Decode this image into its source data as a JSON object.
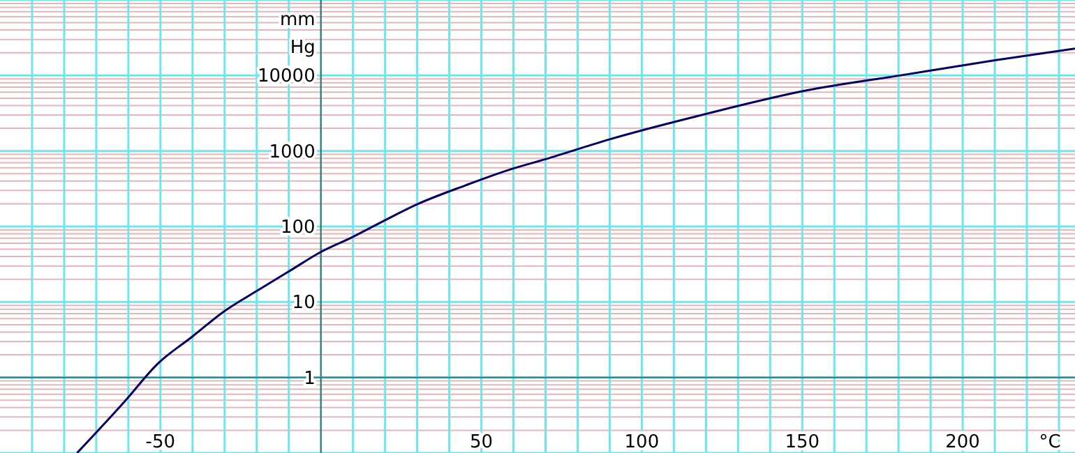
{
  "chart_data": {
    "type": "line",
    "xlabel": "°C",
    "ylabel": "mm Hg",
    "log": "y",
    "grid": true,
    "xlim": [
      -100,
      235
    ],
    "ylim": [
      0.1,
      100000
    ],
    "xticks": [
      {
        "value": -90,
        "label": null
      },
      {
        "value": -80,
        "label": null
      },
      {
        "value": -70,
        "label": null
      },
      {
        "value": -60,
        "label": null
      },
      -50,
      {
        "value": -40,
        "label": null
      },
      {
        "value": -30,
        "label": null
      },
      {
        "value": -20,
        "label": null
      },
      {
        "value": -10,
        "label": null
      },
      {
        "value": 10,
        "label": null
      },
      {
        "value": 20,
        "label": null
      },
      {
        "value": 30,
        "label": null
      },
      {
        "value": 40,
        "label": null
      },
      50,
      {
        "value": 60,
        "label": null
      },
      {
        "value": 70,
        "label": null
      },
      {
        "value": 80,
        "label": null
      },
      {
        "value": 90,
        "label": null
      },
      100,
      {
        "value": 110,
        "label": null
      },
      {
        "value": 120,
        "label": null
      },
      {
        "value": 130,
        "label": null
      },
      {
        "value": 140,
        "label": null
      },
      150,
      {
        "value": 160,
        "label": null
      },
      {
        "value": 170,
        "label": null
      },
      {
        "value": 180,
        "label": null
      },
      {
        "value": 190,
        "label": null
      },
      200,
      {
        "value": 210,
        "label": null
      },
      {
        "value": 220,
        "label": null
      },
      {
        "value": 230,
        "label": null
      }
    ],
    "yticks": [
      {
        "value": 0.2,
        "label": null
      },
      {
        "value": 0.3,
        "label": null
      },
      {
        "value": 0.4,
        "label": null
      },
      {
        "value": 0.5,
        "label": null
      },
      {
        "value": 0.6,
        "label": null
      },
      {
        "value": 0.7,
        "label": null
      },
      {
        "value": 0.8,
        "label": null
      },
      {
        "value": 0.9,
        "label": null
      },
      1,
      {
        "value": 2,
        "label": null
      },
      {
        "value": 3,
        "label": null
      },
      {
        "value": 4,
        "label": null
      },
      {
        "value": 5,
        "label": null
      },
      {
        "value": 6,
        "label": null
      },
      {
        "value": 7,
        "label": null
      },
      {
        "value": 8,
        "label": null
      },
      {
        "value": 9,
        "label": null
      },
      10,
      {
        "value": 20,
        "label": null
      },
      {
        "value": 30,
        "label": null
      },
      {
        "value": 40,
        "label": null
      },
      {
        "value": 50,
        "label": null
      },
      {
        "value": 60,
        "label": null
      },
      {
        "value": 70,
        "label": null
      },
      {
        "value": 80,
        "label": null
      },
      {
        "value": 90,
        "label": null
      },
      100,
      {
        "value": 200,
        "label": null
      },
      {
        "value": 300,
        "label": null
      },
      {
        "value": 400,
        "label": null
      },
      {
        "value": 500,
        "label": null
      },
      {
        "value": 600,
        "label": null
      },
      {
        "value": 700,
        "label": null
      },
      {
        "value": 800,
        "label": null
      },
      {
        "value": 900,
        "label": null
      },
      1000,
      {
        "value": 2000,
        "label": null
      },
      {
        "value": 3000,
        "label": null
      },
      {
        "value": 4000,
        "label": null
      },
      {
        "value": 5000,
        "label": null
      },
      {
        "value": 6000,
        "label": null
      },
      {
        "value": 7000,
        "label": null
      },
      {
        "value": 8000,
        "label": null
      },
      {
        "value": 9000,
        "label": null
      },
      10000,
      {
        "value": 20000,
        "label": null
      },
      {
        "value": 30000,
        "label": null
      },
      {
        "value": 40000,
        "label": null
      },
      {
        "value": 50000,
        "label": null
      },
      {
        "value": 60000,
        "label": null
      },
      {
        "value": 70000,
        "label": null
      },
      {
        "value": 80000,
        "label": null
      },
      {
        "value": 90000,
        "label": null
      }
    ],
    "ref_lines": [
      {
        "axis": "y",
        "value": 1,
        "color": "#2f8080"
      }
    ],
    "series": [
      {
        "color": "#000066",
        "x": [
          -76,
          -61,
          -51,
          -40,
          -30,
          -20,
          -9,
          0,
          10,
          17,
          30,
          45,
          59,
          70,
          90,
          120,
          151,
          181,
          210,
          235
        ],
        "values": [
          0.1,
          0.49,
          1.5,
          3.5,
          7.6,
          14,
          27,
          46,
          73,
          104,
          197,
          350,
          570,
          780,
          1430,
          3100,
          6300,
          10100,
          15900,
          22700
        ]
      }
    ]
  }
}
